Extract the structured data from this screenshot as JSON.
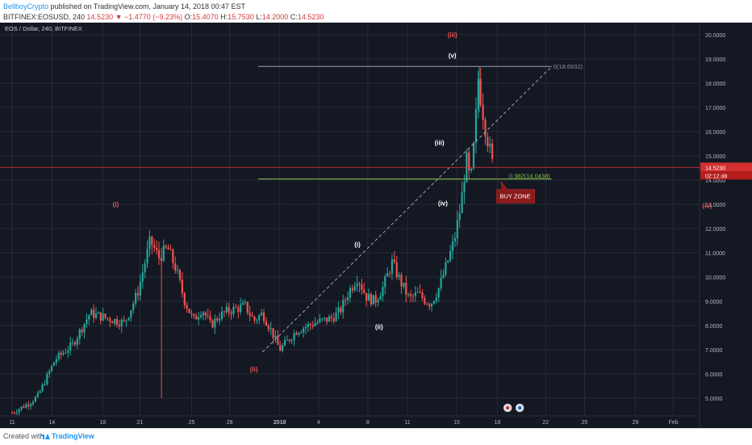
{
  "header": {
    "author": "BellboyCrypto",
    "published": "published on TradingView.com, January 14, 2018 00:47 EST",
    "symbol": "BITFINEX:EOSUSD, 240",
    "last": "14.5230",
    "change": "▼ −1.4770 (−9.23%)",
    "o_label": "O:",
    "o_value": "15.4070",
    "h_label": "H:",
    "h_value": "15.7530",
    "l_label": "L:",
    "l_value": "14.2000",
    "c_label": "C:",
    "c_value": "14.5230"
  },
  "chart_title": "EOS / Dollar, 240, BITFINEX",
  "footer": {
    "created": "Created with",
    "brand": "TradingView"
  },
  "colors": {
    "background": "#141823",
    "grid": "#252b3a",
    "up": "#26a69a",
    "down": "#ef5350",
    "axis_text": "#b2b5be",
    "price_tag": "#d32f2f",
    "fib": "#8bc34a",
    "wave_white": "#ffffff",
    "wave_red": "#ef5350"
  },
  "chart_data": {
    "type": "candlestick",
    "title": "EOS / Dollar, 240, BITFINEX",
    "x_ticks": [
      "11",
      "14",
      "18",
      "21",
      "25",
      "28",
      "2018",
      "4",
      "8",
      "11",
      "15",
      "18",
      "22",
      "25",
      "29",
      "Feb"
    ],
    "y_ticks": [
      "5.0000",
      "6.0000",
      "7.0000",
      "8.0000",
      "9.0000",
      "10.0000",
      "11.0000",
      "12.0000",
      "13.0000",
      "14.0000",
      "15.0000",
      "16.0000",
      "17.0000",
      "18.0000",
      "19.0000",
      "20.0000"
    ],
    "ylim": [
      4.3,
      20.3
    ],
    "close_path": [
      {
        "t": 0,
        "v": 4.4
      },
      {
        "t": 2,
        "v": 4.8
      },
      {
        "t": 3,
        "v": 5.1
      },
      {
        "t": 5,
        "v": 6.6
      },
      {
        "t": 7,
        "v": 7.2
      },
      {
        "t": 9,
        "v": 8.5
      },
      {
        "t": 11,
        "v": 8.3
      },
      {
        "t": 13,
        "v": 8.1
      },
      {
        "t": 14.5,
        "v": 9.3
      },
      {
        "t": 16,
        "v": 11.5
      },
      {
        "t": 17,
        "v": 10.8
      },
      {
        "t": 18,
        "v": 11.2
      },
      {
        "t": 19,
        "v": 10.3
      },
      {
        "t": 20,
        "v": 9.0
      },
      {
        "t": 21,
        "v": 8.2
      },
      {
        "t": 22,
        "v": 8.7
      },
      {
        "t": 23,
        "v": 8.0
      },
      {
        "t": 24,
        "v": 8.4
      },
      {
        "t": 25,
        "v": 8.6
      },
      {
        "t": 27,
        "v": 8.8
      },
      {
        "t": 28,
        "v": 8.2
      },
      {
        "t": 29,
        "v": 8.5
      },
      {
        "t": 30,
        "v": 7.8
      },
      {
        "t": 31,
        "v": 7.0
      },
      {
        "t": 33,
        "v": 7.8
      },
      {
        "t": 35,
        "v": 8.1
      },
      {
        "t": 37,
        "v": 8.3
      },
      {
        "t": 38,
        "v": 8.6
      },
      {
        "t": 39,
        "v": 9.4
      },
      {
        "t": 40,
        "v": 10.0
      },
      {
        "t": 41,
        "v": 9.2
      },
      {
        "t": 42,
        "v": 9.0
      },
      {
        "t": 43,
        "v": 9.6
      },
      {
        "t": 44,
        "v": 10.6
      },
      {
        "t": 45,
        "v": 9.8
      },
      {
        "t": 46,
        "v": 9.1
      },
      {
        "t": 47,
        "v": 9.3
      },
      {
        "t": 48,
        "v": 9.0
      },
      {
        "t": 48.5,
        "v": 8.9
      },
      {
        "t": 49.5,
        "v": 9.6
      },
      {
        "t": 50.5,
        "v": 10.7
      },
      {
        "t": 51.2,
        "v": 11.5
      },
      {
        "t": 52,
        "v": 13.0
      },
      {
        "t": 52.6,
        "v": 14.9
      },
      {
        "t": 53.1,
        "v": 13.8
      },
      {
        "t": 53.6,
        "v": 15.9
      },
      {
        "t": 54,
        "v": 18.2
      },
      {
        "t": 54.4,
        "v": 17.1
      },
      {
        "t": 54.9,
        "v": 16.0
      },
      {
        "t": 55.3,
        "v": 15.3
      },
      {
        "t": 55.7,
        "v": 14.52
      }
    ],
    "last_price": "14.5230",
    "countdown": "02:12:48",
    "fib_levels": [
      {
        "label": "0(18.6932)",
        "value": 18.6932
      },
      {
        "label": "0.382(14.0438)",
        "value": 14.0438
      }
    ],
    "annotations": {
      "buy_zone": "BUY ZONE",
      "waves": [
        {
          "text": "(i)",
          "color": "red"
        },
        {
          "text": "(ii)",
          "color": "red"
        },
        {
          "text": "(iii)",
          "color": "red"
        },
        {
          "text": "(iv)",
          "color": "red"
        },
        {
          "text": "(i)",
          "color": "white"
        },
        {
          "text": "(ii)",
          "color": "white"
        },
        {
          "text": "(iii)",
          "color": "white"
        },
        {
          "text": "(iv)",
          "color": "white"
        },
        {
          "text": "(v)",
          "color": "white"
        }
      ]
    }
  }
}
